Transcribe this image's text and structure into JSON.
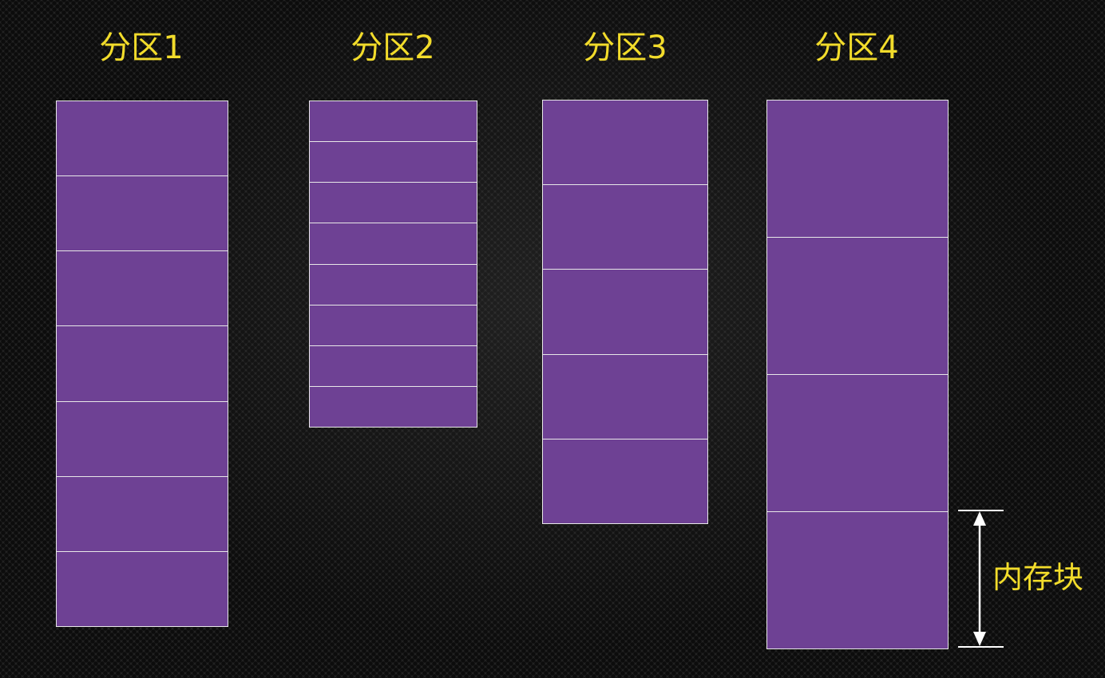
{
  "partitions": [
    {
      "title": "分区1",
      "blocks": 7
    },
    {
      "title": "分区2",
      "blocks": 8
    },
    {
      "title": "分区3",
      "blocks": 5
    },
    {
      "title": "分区4",
      "blocks": 4
    }
  ],
  "block_label": "内存块",
  "colors": {
    "title_text": "#f2dc2b",
    "block_fill": "#6e4194",
    "block_border": "#e8e8e8",
    "dimension_line": "#ffffff"
  }
}
